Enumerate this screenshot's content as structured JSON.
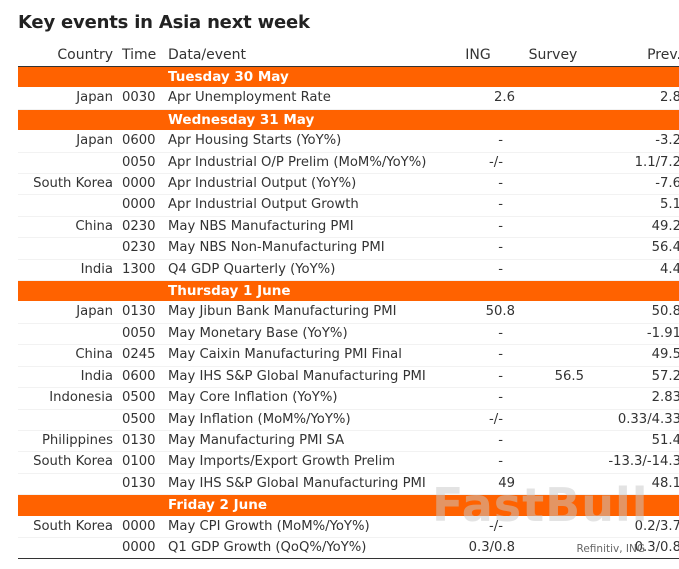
{
  "title": "Key events in Asia next week",
  "headers": {
    "country": "Country",
    "time": "Time",
    "event": "Data/event",
    "ing": "ING",
    "survey": "Survey",
    "prev": "Prev."
  },
  "days": [
    {
      "label": "Tuesday 30 May",
      "rows": [
        {
          "country": "Japan",
          "time": "0030",
          "event": "Apr Unemployment Rate",
          "ing": "2.6",
          "survey": "",
          "prev": "2.8"
        }
      ]
    },
    {
      "label": "Wednesday 31 May",
      "rows": [
        {
          "country": "Japan",
          "time": "0600",
          "event": "Apr Housing Starts (YoY%)",
          "ing": "-",
          "survey": "",
          "prev": "-3.2"
        },
        {
          "country": "",
          "time": "0050",
          "event": "Apr Industrial O/P Prelim (MoM%/YoY%)",
          "ing": "-/-",
          "survey": "",
          "prev": "1.1/7.2"
        },
        {
          "country": "South Korea",
          "time": "0000",
          "event": "Apr Industrial Output (YoY%)",
          "ing": "-",
          "survey": "",
          "prev": "-7.6"
        },
        {
          "country": "",
          "time": "0000",
          "event": "Apr Industrial Output Growth",
          "ing": "-",
          "survey": "",
          "prev": "5.1"
        },
        {
          "country": "China",
          "time": "0230",
          "event": "May NBS Manufacturing PMI",
          "ing": "-",
          "survey": "",
          "prev": "49.2"
        },
        {
          "country": "",
          "time": "0230",
          "event": "May NBS Non-Manufacturing PMI",
          "ing": "-",
          "survey": "",
          "prev": "56.4"
        },
        {
          "country": "India",
          "time": "1300",
          "event": "Q4 GDP Quarterly (YoY%)",
          "ing": "-",
          "survey": "",
          "prev": "4.4"
        }
      ]
    },
    {
      "label": "Thursday 1 June",
      "rows": [
        {
          "country": "Japan",
          "time": "0130",
          "event": "May Jibun Bank Manufacturing PMI",
          "ing": "50.8",
          "survey": "",
          "prev": "50.8"
        },
        {
          "country": "",
          "time": "0050",
          "event": "May Monetary Base (YoY%)",
          "ing": "-",
          "survey": "",
          "prev": "-1.91"
        },
        {
          "country": "China",
          "time": "0245",
          "event": "May Caixin Manufacturing PMI Final",
          "ing": "-",
          "survey": "",
          "prev": "49.5"
        },
        {
          "country": "India",
          "time": "0600",
          "event": "May IHS S&P Global Manufacturing PMI",
          "ing": "-",
          "survey": "56.5",
          "prev": "57.2"
        },
        {
          "country": "Indonesia",
          "time": "0500",
          "event": "May Core Inflation (YoY%)",
          "ing": "-",
          "survey": "",
          "prev": "2.83"
        },
        {
          "country": "",
          "time": "0500",
          "event": "May Inflation (MoM%/YoY%)",
          "ing": "-/-",
          "survey": "",
          "prev": "0.33/4.33"
        },
        {
          "country": "Philippines",
          "time": "0130",
          "event": "May Manufacturing PMI SA",
          "ing": "-",
          "survey": "",
          "prev": "51.4"
        },
        {
          "country": "South Korea",
          "time": "0100",
          "event": "May Imports/Export Growth Prelim",
          "ing": "-",
          "survey": "",
          "prev": "-13.3/-14.3"
        },
        {
          "country": "",
          "time": "0130",
          "event": "May IHS S&P Global Manufacturing PMI",
          "ing": "49",
          "survey": "",
          "prev": "48.1"
        }
      ]
    },
    {
      "label": "Friday 2 June",
      "rows": [
        {
          "country": "South Korea",
          "time": "0000",
          "event": "May CPI Growth (MoM%/YoY%)",
          "ing": "-/-",
          "survey": "",
          "prev": "0.2/3.7"
        },
        {
          "country": "",
          "time": "0000",
          "event": "Q1 GDP Growth (QoQ%/YoY%)",
          "ing": "0.3/0.8",
          "survey": "",
          "prev": "0.3/0.8"
        }
      ]
    }
  ],
  "source": "Refinitiv, ING",
  "watermark": "FastBull",
  "colors": {
    "accent": "#ff6200",
    "text": "#333333"
  }
}
